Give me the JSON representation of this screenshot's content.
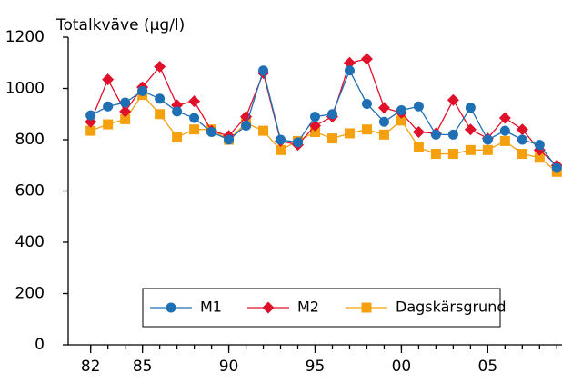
{
  "chart_data": {
    "type": "line",
    "title": "Totalkväve (µg/l)",
    "x": [
      1982,
      1983,
      1984,
      1985,
      1986,
      1987,
      1988,
      1989,
      1990,
      1991,
      1992,
      1993,
      1994,
      1995,
      1996,
      1997,
      1998,
      1999,
      2000,
      2001,
      2002,
      2003,
      2004,
      2005,
      2006,
      2007,
      2008,
      2009
    ],
    "series": [
      {
        "name": "M1",
        "color": "#1f6fb5",
        "marker": "circle",
        "values": [
          895,
          930,
          945,
          990,
          960,
          910,
          885,
          830,
          800,
          855,
          1070,
          800,
          790,
          890,
          900,
          1070,
          940,
          870,
          915,
          930,
          820,
          820,
          925,
          800,
          835,
          800,
          780,
          690
        ]
      },
      {
        "name": "M2",
        "color": "#e0102a",
        "marker": "diamond",
        "values": [
          870,
          1035,
          910,
          1005,
          1085,
          935,
          950,
          835,
          815,
          890,
          1060,
          795,
          780,
          855,
          890,
          1100,
          1115,
          925,
          905,
          830,
          825,
          955,
          840,
          805,
          885,
          840,
          760,
          700
        ]
      },
      {
        "name": "Dagskärsgrund",
        "color": "#f5a00f",
        "marker": "square",
        "values": [
          835,
          860,
          880,
          975,
          900,
          810,
          840,
          840,
          800,
          865,
          835,
          760,
          795,
          830,
          805,
          825,
          840,
          820,
          875,
          770,
          745,
          745,
          760,
          760,
          795,
          745,
          730,
          675
        ]
      }
    ],
    "xlim": [
      1980.7,
      2009.3
    ],
    "xticks": [
      {
        "value": 1982,
        "label": "82"
      },
      {
        "value": 1985,
        "label": "85"
      },
      {
        "value": 1990,
        "label": "90"
      },
      {
        "value": 1995,
        "label": "95"
      },
      {
        "value": 2000,
        "label": "00"
      },
      {
        "value": 2005,
        "label": "05"
      }
    ],
    "ylim": [
      0,
      1200
    ],
    "yticks": [
      0,
      200,
      400,
      600,
      800,
      1000,
      1200
    ]
  }
}
